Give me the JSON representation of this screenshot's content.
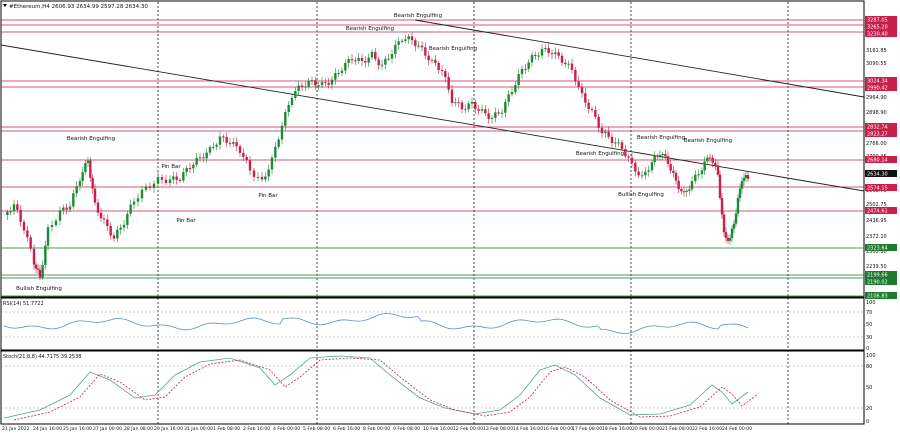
{
  "window": {
    "symbol_line": "#Ethereum,H4  2606.93 2634.99 2597.28 2634.30"
  },
  "price_axis": {
    "labels": [
      "3161.85",
      "3090.55",
      "2964.90",
      "2898.90",
      "2766.00",
      "2700.35",
      "2568.75",
      "2502.75",
      "2436.95",
      "2372.10",
      "2305.30",
      "2239.50",
      "2173.70"
    ],
    "level_tags": [
      {
        "text": "3287.05",
        "color": "#c8204a"
      },
      {
        "text": "3265.20",
        "color": "#c8204a"
      },
      {
        "text": "3230.40",
        "color": "#c8204a"
      },
      {
        "text": "3024.34",
        "color": "#c8204a"
      },
      {
        "text": "2990.42",
        "color": "#c8204a"
      },
      {
        "text": "2832.74",
        "color": "#c8204a"
      },
      {
        "text": "2823.27",
        "color": "#c8204a"
      },
      {
        "text": "2680.14",
        "color": "#c8204a"
      },
      {
        "text": "2634.30",
        "color": "#111111"
      },
      {
        "text": "2574.15",
        "color": "#c8204a"
      },
      {
        "text": "2474.61",
        "color": "#c8204a"
      },
      {
        "text": "2323.64",
        "color": "#1e7a2e"
      },
      {
        "text": "2199.66",
        "color": "#1e7a2e"
      },
      {
        "text": "2190.02",
        "color": "#1e7a2e"
      },
      {
        "text": "2106.83",
        "color": "#1e7a2e"
      }
    ]
  },
  "patterns": [
    "Bearish Engulfing",
    "Bearish Engulfing",
    "Bearish Engulfing",
    "Bearish Engulfing",
    "Bearish Engulfing",
    "Bearish Engulfing",
    "Bearish Engulfing",
    "Pin Bar",
    "Pin Bar",
    "Pin Bar",
    "Bullish Engulfing",
    "Bullish Engulfing"
  ],
  "rsi": {
    "title": "RSI(14) 51.7722",
    "axis": [
      "100",
      "70",
      "50",
      "30",
      "0"
    ]
  },
  "stoch": {
    "title": "Stoch(21,8,8) 44.7175 39.2538",
    "axis": [
      "100",
      "80",
      "50",
      "20",
      "0"
    ]
  },
  "time_axis": [
    "21 Jan 2022",
    "24 Jan 16:00",
    "25 Jan 16:00",
    "27 Jan 00:00",
    "28 Jan 08:00",
    "29 Jan 16:00",
    "31 Jan 00:00",
    "1 Feb 08:00",
    "2 Feb 16:00",
    "4 Feb 00:00",
    "5 Feb 08:00",
    "6 Feb 16:00",
    "8 Feb 00:00",
    "9 Feb 08:00",
    "10 Feb 16:00",
    "12 Feb 00:00",
    "13 Feb 08:00",
    "14 Feb 16:00",
    "16 Feb 00:00",
    "17 Feb 08:00",
    "18 Feb 16:00",
    "20 Feb 00:00",
    "21 Feb 08:00",
    "22 Feb 16:00",
    "24 Feb 00:00"
  ],
  "colors": {
    "bull": "#1d8a35",
    "bear": "#c8204a",
    "support": "#1e7a2e",
    "resistance": "#c8204a",
    "rsi_line": "#5b8ec9",
    "stoch_k": "#4aa88a",
    "stoch_d": "#c8204a"
  }
}
